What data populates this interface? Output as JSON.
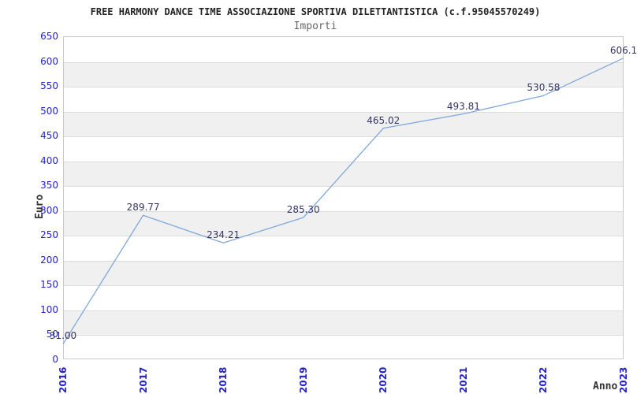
{
  "chart_data": {
    "type": "line",
    "title": "FREE HARMONY DANCE TIME ASSOCIAZIONE SPORTIVA DILETTANTISTICA (c.f.95045570249)",
    "subtitle": "Importi",
    "xlabel": "Anno",
    "ylabel": "Euro",
    "categories": [
      "2016",
      "2017",
      "2018",
      "2019",
      "2020",
      "2021",
      "2022",
      "2023"
    ],
    "series": [
      {
        "name": "Importi",
        "values": [
          31.0,
          289.77,
          234.21,
          285.3,
          465.02,
          493.81,
          530.58,
          606.1
        ],
        "point_labels": [
          "31.00",
          "289.77",
          "234.21",
          "285.30",
          "465.02",
          "493.81",
          "530.58",
          "606.1"
        ]
      }
    ],
    "ylim": [
      0,
      650
    ],
    "ytick_step": 50,
    "ytick_labels": [
      "0",
      "50",
      "100",
      "150",
      "200",
      "250",
      "300",
      "350",
      "400",
      "450",
      "500",
      "550",
      "600",
      "650"
    ],
    "grid": true,
    "banded_background": true,
    "legend_position": "none",
    "colors": {
      "line": "#7fa8dc",
      "tick_label": "#2222cc",
      "point_label": "#333366",
      "band_gray": "#f0f0f0",
      "gridline": "#dcdcdc",
      "plot_border": "#c9c9c9",
      "title": "#222222",
      "subtitle": "#666666",
      "axis_title": "#333333",
      "background": "#ffffff"
    }
  }
}
